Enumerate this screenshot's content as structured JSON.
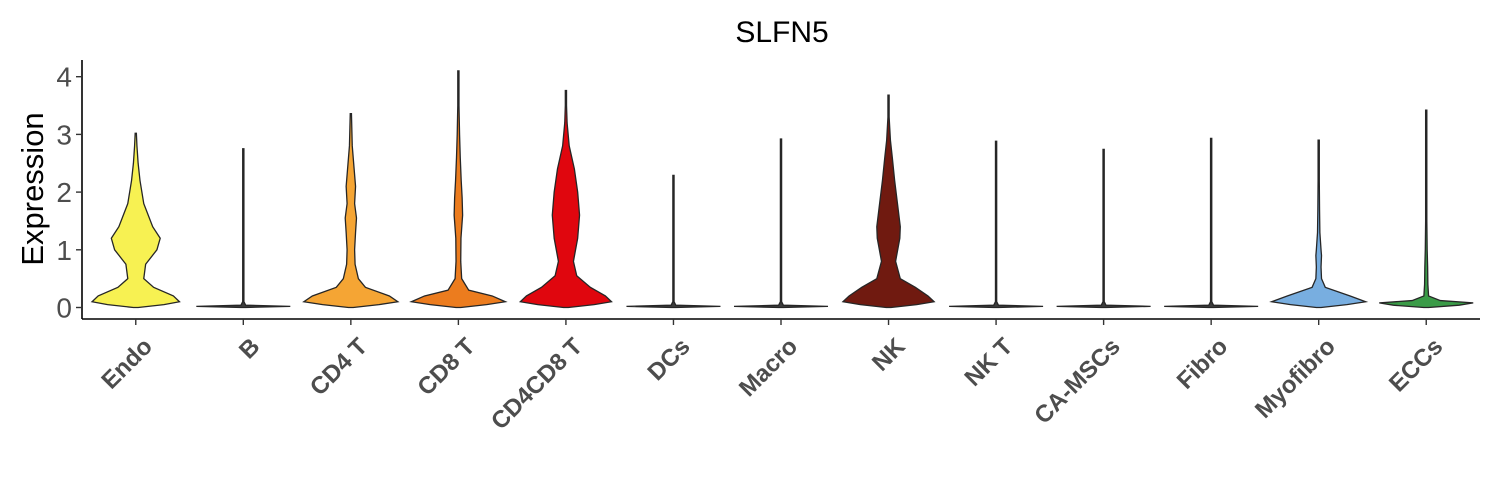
{
  "chart_data": {
    "type": "violin",
    "title": "SLFN5",
    "xlabel": "",
    "ylabel": "Expression",
    "ylim": [
      -0.2,
      4.3
    ],
    "yticks": [
      0,
      1,
      2,
      3,
      4
    ],
    "grid": false,
    "legend": "none",
    "categories": [
      "Endo",
      "B",
      "CD4 T",
      "CD8 T",
      "CD4CD8 T",
      "DCs",
      "Macro",
      "NK",
      "NK T",
      "CA-MSCs",
      "Fibro",
      "Myofibro",
      "ECCs"
    ],
    "series": [
      {
        "category": "Endo",
        "color": "#f7f152",
        "max": 3.02,
        "profile": [
          [
            0,
            0.05
          ],
          [
            0.05,
            0.6
          ],
          [
            0.1,
            0.93
          ],
          [
            0.2,
            0.8
          ],
          [
            0.35,
            0.38
          ],
          [
            0.5,
            0.17
          ],
          [
            0.75,
            0.21
          ],
          [
            1.0,
            0.45
          ],
          [
            1.2,
            0.52
          ],
          [
            1.4,
            0.36
          ],
          [
            1.8,
            0.17
          ],
          [
            2.2,
            0.09
          ],
          [
            2.5,
            0.05
          ],
          [
            2.8,
            0.025
          ],
          [
            3.02,
            0.005
          ]
        ]
      },
      {
        "category": "B",
        "color": "#3d3d3d",
        "max": 2.75,
        "profile": [
          [
            0,
            0.05
          ],
          [
            0.02,
            1.0
          ],
          [
            0.04,
            0.05
          ],
          [
            0.1,
            0.012
          ],
          [
            2.75,
            0.008
          ]
        ]
      },
      {
        "category": "CD4 T",
        "color": "#f5a534",
        "max": 3.36,
        "profile": [
          [
            0,
            0.05
          ],
          [
            0.05,
            0.6
          ],
          [
            0.1,
            1.0
          ],
          [
            0.2,
            0.82
          ],
          [
            0.35,
            0.31
          ],
          [
            0.5,
            0.16
          ],
          [
            0.75,
            0.09
          ],
          [
            1.0,
            0.08
          ],
          [
            1.3,
            0.1
          ],
          [
            1.55,
            0.12
          ],
          [
            1.8,
            0.08
          ],
          [
            2.1,
            0.1
          ],
          [
            2.4,
            0.07
          ],
          [
            2.8,
            0.03
          ],
          [
            3.36,
            0.005
          ]
        ]
      },
      {
        "category": "CD8 T",
        "color": "#ec7c1e",
        "max": 4.1,
        "profile": [
          [
            0,
            0.05
          ],
          [
            0.05,
            0.6
          ],
          [
            0.1,
            1.0
          ],
          [
            0.2,
            0.72
          ],
          [
            0.3,
            0.22
          ],
          [
            0.5,
            0.07
          ],
          [
            0.8,
            0.05
          ],
          [
            1.2,
            0.055
          ],
          [
            1.6,
            0.09
          ],
          [
            1.9,
            0.08
          ],
          [
            2.2,
            0.06
          ],
          [
            2.6,
            0.04
          ],
          [
            3.0,
            0.025
          ],
          [
            3.5,
            0.012
          ],
          [
            4.1,
            0.004
          ]
        ]
      },
      {
        "category": "CD4CD8 T",
        "color": "#e0060e",
        "max": 3.76,
        "profile": [
          [
            0,
            0.05
          ],
          [
            0.05,
            0.6
          ],
          [
            0.1,
            0.97
          ],
          [
            0.2,
            0.84
          ],
          [
            0.35,
            0.52
          ],
          [
            0.55,
            0.23
          ],
          [
            0.8,
            0.16
          ],
          [
            1.2,
            0.25
          ],
          [
            1.6,
            0.29
          ],
          [
            2.0,
            0.25
          ],
          [
            2.4,
            0.18
          ],
          [
            2.8,
            0.07
          ],
          [
            3.2,
            0.025
          ],
          [
            3.5,
            0.01
          ],
          [
            3.76,
            0.004
          ]
        ]
      },
      {
        "category": "DCs",
        "color": "#3d3d3d",
        "max": 2.29,
        "profile": [
          [
            0,
            0.05
          ],
          [
            0.02,
            1.0
          ],
          [
            0.04,
            0.05
          ],
          [
            0.1,
            0.012
          ],
          [
            2.29,
            0.008
          ]
        ]
      },
      {
        "category": "Macro",
        "color": "#3d3d3d",
        "max": 2.92,
        "profile": [
          [
            0,
            0.05
          ],
          [
            0.02,
            1.0
          ],
          [
            0.04,
            0.05
          ],
          [
            0.1,
            0.012
          ],
          [
            2.92,
            0.008
          ]
        ]
      },
      {
        "category": "NK",
        "color": "#701a10",
        "max": 3.68,
        "profile": [
          [
            0,
            0.05
          ],
          [
            0.05,
            0.6
          ],
          [
            0.1,
            0.97
          ],
          [
            0.2,
            0.84
          ],
          [
            0.35,
            0.57
          ],
          [
            0.5,
            0.25
          ],
          [
            0.8,
            0.15
          ],
          [
            1.2,
            0.24
          ],
          [
            1.4,
            0.25
          ],
          [
            1.8,
            0.19
          ],
          [
            2.2,
            0.13
          ],
          [
            2.6,
            0.08
          ],
          [
            2.9,
            0.04
          ],
          [
            3.3,
            0.012
          ],
          [
            3.68,
            0.004
          ]
        ]
      },
      {
        "category": "NK T",
        "color": "#3d3d3d",
        "max": 2.88,
        "profile": [
          [
            0,
            0.05
          ],
          [
            0.02,
            1.0
          ],
          [
            0.04,
            0.05
          ],
          [
            0.1,
            0.012
          ],
          [
            2.88,
            0.008
          ]
        ]
      },
      {
        "category": "CA-MSCs",
        "color": "#3d3d3d",
        "max": 2.74,
        "profile": [
          [
            0,
            0.05
          ],
          [
            0.02,
            1.0
          ],
          [
            0.04,
            0.05
          ],
          [
            0.1,
            0.012
          ],
          [
            2.74,
            0.008
          ]
        ]
      },
      {
        "category": "Fibro",
        "color": "#3d3d3d",
        "max": 2.93,
        "profile": [
          [
            0,
            0.05
          ],
          [
            0.02,
            1.0
          ],
          [
            0.04,
            0.05
          ],
          [
            0.1,
            0.012
          ],
          [
            2.93,
            0.008
          ]
        ]
      },
      {
        "category": "Myofibro",
        "color": "#78aee0",
        "max": 2.94,
        "profile": [
          [
            0,
            0.05
          ],
          [
            0.05,
            0.6
          ],
          [
            0.1,
            1.0
          ],
          [
            0.2,
            0.67
          ],
          [
            0.35,
            0.14
          ],
          [
            0.5,
            0.06
          ],
          [
            0.7,
            0.05
          ],
          [
            0.9,
            0.06
          ],
          [
            1.0,
            0.05
          ],
          [
            1.3,
            0.025
          ],
          [
            1.7,
            0.018
          ],
          [
            2.2,
            0.01
          ],
          [
            2.9,
            0.004
          ]
        ]
      },
      {
        "category": "ECCs",
        "color": "#3a9b47",
        "max": 3.42,
        "profile": [
          [
            0,
            0.05
          ],
          [
            0.04,
            0.7
          ],
          [
            0.08,
            1.0
          ],
          [
            0.12,
            0.3
          ],
          [
            0.2,
            0.05
          ],
          [
            0.4,
            0.035
          ],
          [
            0.7,
            0.03
          ],
          [
            1.0,
            0.02
          ],
          [
            1.5,
            0.012
          ],
          [
            2.2,
            0.008
          ],
          [
            3.42,
            0.004
          ]
        ]
      }
    ]
  }
}
